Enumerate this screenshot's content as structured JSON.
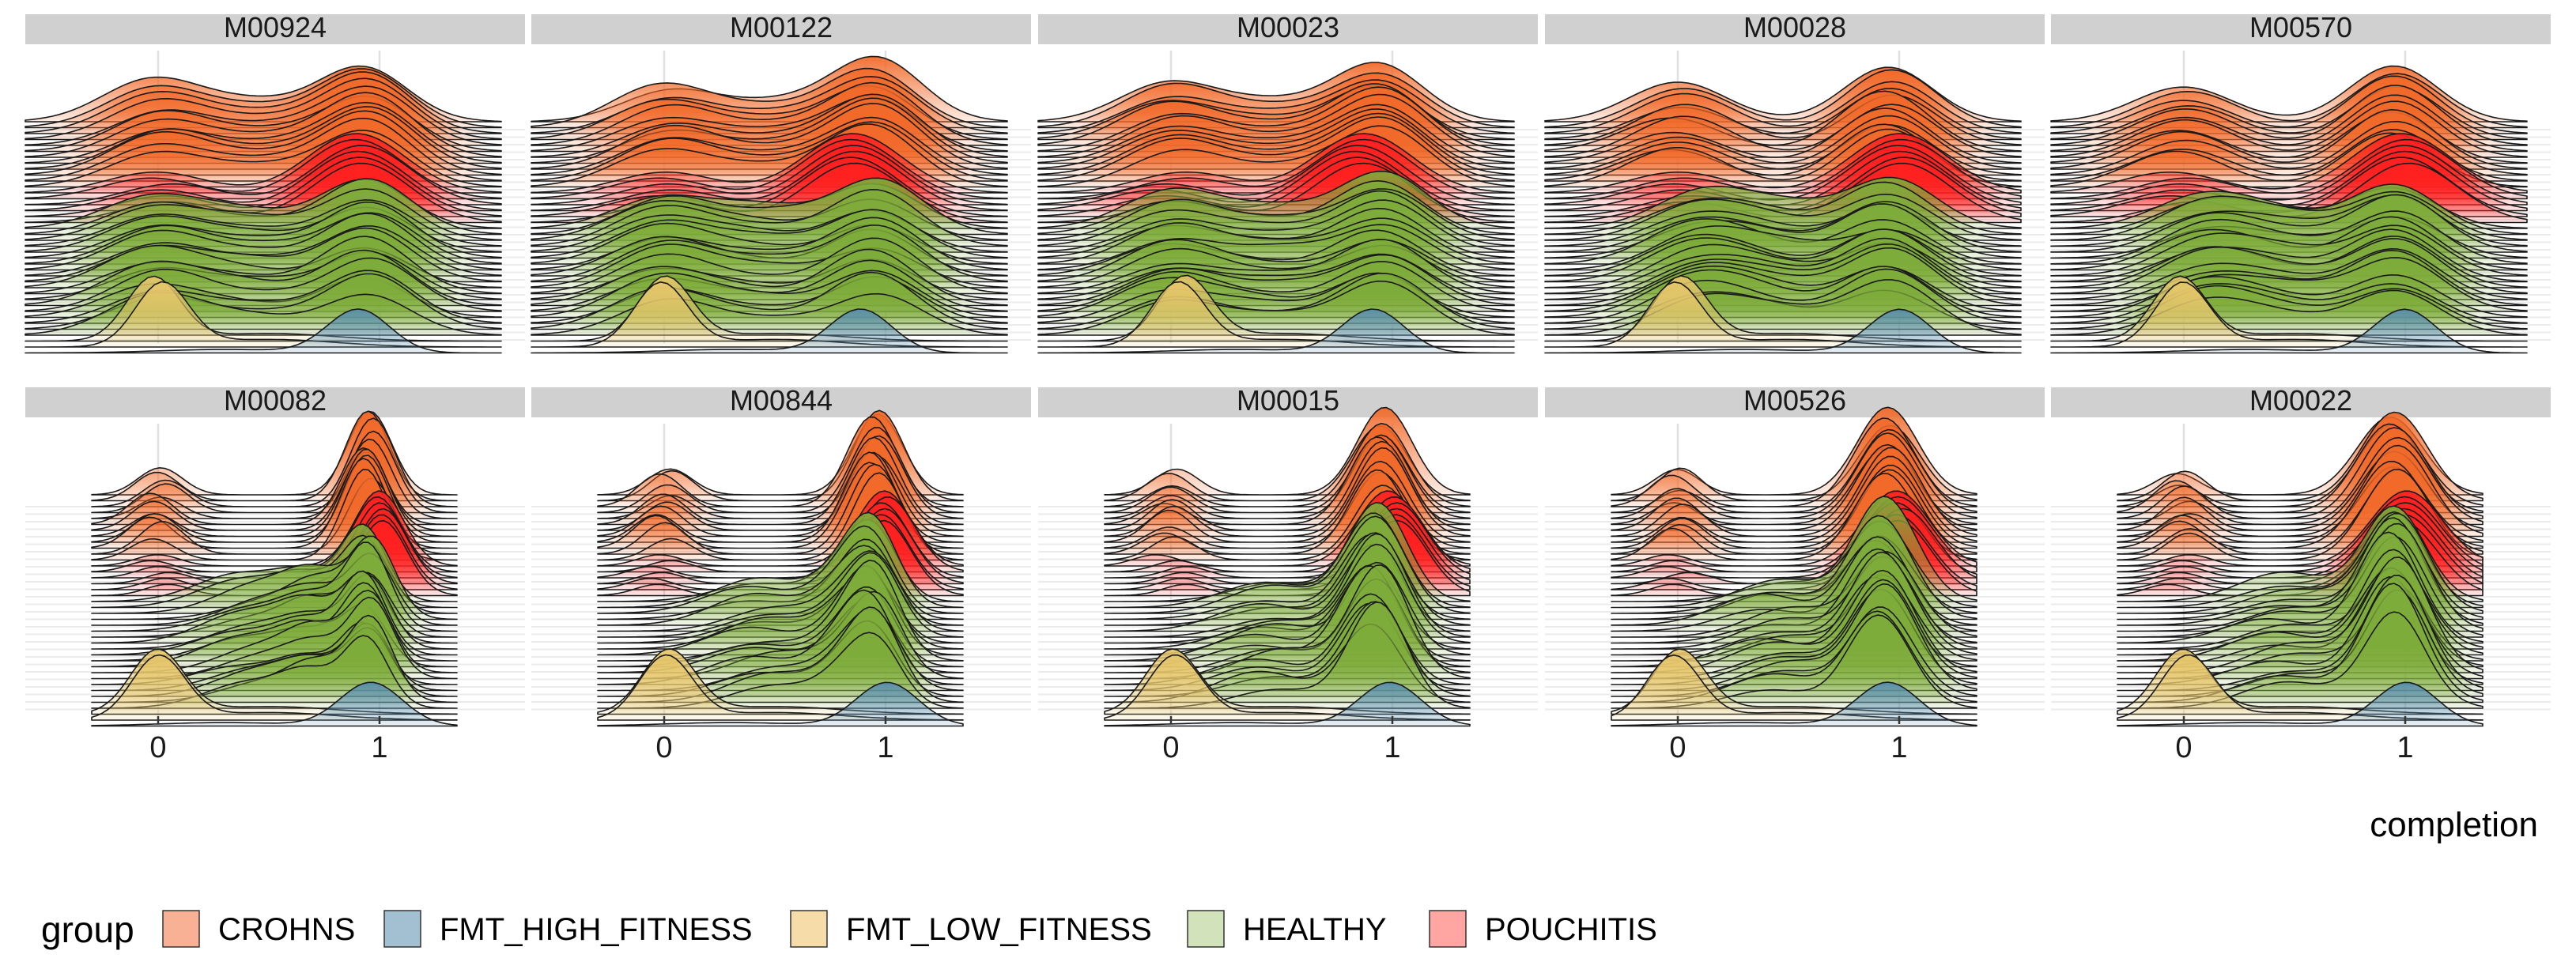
{
  "chart_data": {
    "type": "ridgeline",
    "facet_layout": "2 rows x 5 columns",
    "panels": [
      {
        "title": "M00924",
        "modes": [
          0,
          1
        ],
        "crohns_first": 0.5,
        "pouch_mode": 0.9,
        "healthy_mode": 0,
        "low_mode": 0.0,
        "high_mode": 0.9
      },
      {
        "title": "M00122",
        "modes": [
          0,
          1
        ],
        "crohns_first": 0.5,
        "pouch_mode": 0.85,
        "healthy_mode": 0,
        "low_mode": 0.0,
        "high_mode": 0.9
      },
      {
        "title": "M00023",
        "modes": [
          0,
          1
        ],
        "crohns_first": 0.5,
        "pouch_mode": 0.85,
        "healthy_mode": 0,
        "low_mode": 0.05,
        "high_mode": 0.9
      },
      {
        "title": "M00028",
        "modes": [
          0,
          1
        ],
        "crohns_first": 0.6,
        "pouch_mode": 1.0,
        "healthy_mode": 0.1,
        "low_mode": 0.0,
        "high_mode": 1.0
      },
      {
        "title": "M00570",
        "modes": [
          0,
          1
        ],
        "crohns_first": 0.6,
        "pouch_mode": 1.0,
        "healthy_mode": 0.1,
        "low_mode": 0.0,
        "high_mode": 1.0
      },
      {
        "title": "M00082",
        "modes": [
          0,
          1
        ],
        "crohns_first": 0.7,
        "pouch_mode": 1.0,
        "healthy_mode": 0.7,
        "low_mode": 0.0,
        "high_mode": 0.95
      },
      {
        "title": "M00844",
        "modes": [
          0,
          1
        ],
        "crohns_first": 0.8,
        "pouch_mode": 1.0,
        "healthy_mode": 0.8,
        "low_mode": 0.0,
        "high_mode": 1.0
      },
      {
        "title": "M00015",
        "modes": [
          0,
          1
        ],
        "crohns_first": 0.85,
        "pouch_mode": 1.0,
        "healthy_mode": 0.85,
        "low_mode": 0.0,
        "high_mode": 1.0
      },
      {
        "title": "M00526",
        "modes": [
          0,
          1
        ],
        "crohns_first": 0.9,
        "pouch_mode": 1.0,
        "healthy_mode": 0.85,
        "low_mode": 0.0,
        "high_mode": 0.95
      },
      {
        "title": "M00022",
        "modes": [
          0,
          1
        ],
        "crohns_first": 0.95,
        "pouch_mode": 1.0,
        "healthy_mode": 0.95,
        "low_mode": 0.0,
        "high_mode": 1.0
      }
    ],
    "x_ticks": [
      0,
      1
    ],
    "x_range": [
      -0.6,
      1.6
    ],
    "xlabel": "completion",
    "ylabel": "",
    "grid": true,
    "legend": {
      "title": "group",
      "placement": "bottom",
      "entries": [
        {
          "label": "CROHNS",
          "color": "#F8B195"
        },
        {
          "label": "FMT_HIGH_FITNESS",
          "color": "#A3BFD2"
        },
        {
          "label": "FMT_LOW_FITNESS",
          "color": "#F5DCA8"
        },
        {
          "label": "HEALTHY",
          "color": "#D2E3BC"
        },
        {
          "label": "POUCHITIS",
          "color": "#FFA6A3"
        }
      ]
    },
    "fill_colors": {
      "crohns": "#F26A2A",
      "pouchitis": "#FF2020",
      "healthy": "#7EAC3A",
      "fmt_low": "#E6C66B",
      "fmt_high": "#5A8FAE"
    }
  }
}
